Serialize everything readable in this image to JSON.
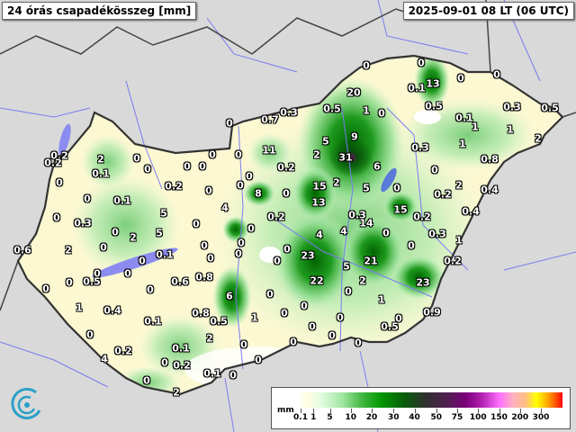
{
  "header": {
    "title": "24 órás csapadékösszeg [mm]",
    "timestamp": "2025-09-01 08 LT (06 UTC)"
  },
  "legend": {
    "unit": "mm",
    "ticks": [
      "0.1",
      "1",
      "5",
      "10",
      "20",
      "30",
      "40",
      "50",
      "75",
      "100",
      "150",
      "200",
      "300"
    ]
  },
  "colors": {
    "background": "#d9d9d9",
    "country_fill": "#fbf8d2",
    "rain_green": "#009600",
    "border": "#333333",
    "water": "#8c8cf0"
  },
  "stations": [
    "0",
    "0",
    "13",
    "0.1",
    "0.5",
    "20",
    "0.5",
    "1",
    "0",
    "0.3",
    "0.7",
    "0",
    "5",
    "9",
    "11",
    "0.3",
    "0",
    "2",
    "31",
    "0.2",
    "6",
    "0",
    "0",
    "15",
    "2",
    "5",
    "0",
    "0",
    "8",
    "13",
    "15",
    "0",
    "0.2",
    "0.3",
    "14",
    "0.2",
    "0",
    "4",
    "4",
    "0",
    "0.3",
    "0",
    "0",
    "0",
    "0",
    "0",
    "23",
    "21",
    "5",
    "0.2",
    "22",
    "2",
    "23",
    "6",
    "0",
    "0",
    "1",
    "0",
    "0",
    "1",
    "0.9",
    "0",
    "0",
    "0",
    "0.5",
    "0",
    "0",
    "0",
    "0",
    "0.2",
    "0.2",
    "2",
    "0",
    "0",
    "0.1",
    "0",
    "0",
    "0",
    "0.2",
    "0",
    "0",
    "0",
    "0.1",
    "5",
    "4",
    "0",
    "0.3",
    "0",
    "2",
    "5",
    "0",
    "0",
    "2",
    "0.6",
    "0",
    "0",
    "0.1",
    "0",
    "0",
    "0",
    "0.5",
    "0",
    "0.6",
    "0.8",
    "0",
    "0",
    "1",
    "0.4",
    "0.1",
    "0.8",
    "0.5",
    "2",
    "0",
    "0.2",
    "0.1",
    "4",
    "0",
    "0.2",
    "0.1",
    "0",
    "0",
    "0",
    "2",
    "0",
    "0",
    "0.3",
    "0.5",
    "0.1",
    "1",
    "1",
    "2",
    "1",
    "0.8",
    "2",
    "0.2",
    "0.4",
    "0.4",
    "1",
    "0.5"
  ]
}
